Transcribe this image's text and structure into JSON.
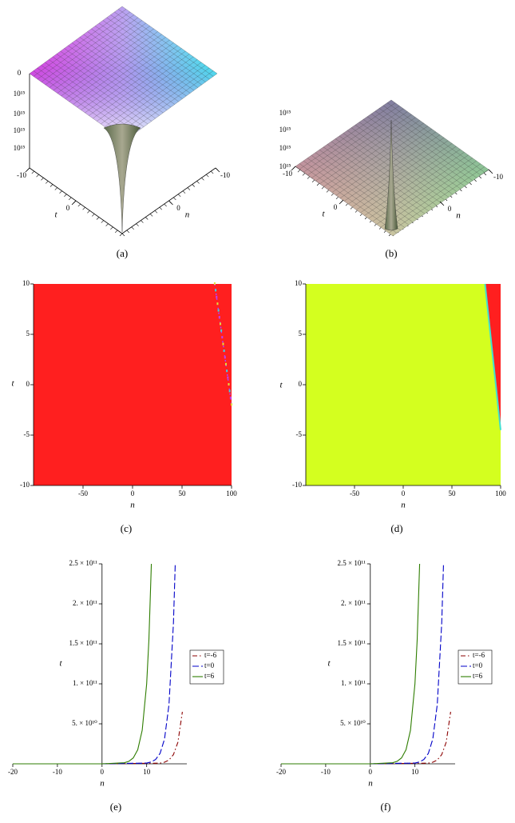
{
  "chart_data": [
    {
      "type": "surface",
      "caption": "(a)",
      "xlabel": "t",
      "ylabel": "n",
      "xticks": [
        -10,
        0
      ],
      "yticks": [
        0,
        -10
      ],
      "ztick_labels": [
        "0",
        "10¹⁵",
        "10¹⁵",
        "10¹⁵",
        "10¹⁵"
      ]
    },
    {
      "type": "surface",
      "caption": "(b)",
      "xlabel": "t",
      "ylabel": "n",
      "xticks": [
        -10,
        0
      ],
      "yticks": [
        0,
        -10
      ],
      "ztick_labels": [
        "10¹⁵",
        "10¹⁵",
        "10¹⁵",
        "10¹⁵"
      ]
    },
    {
      "type": "density",
      "caption": "(c)",
      "xlabel": "n",
      "ylabel": "t",
      "xlim": [
        -100,
        100
      ],
      "ylim": [
        -10,
        10
      ],
      "xticks": [
        -50,
        0,
        50,
        100
      ],
      "yticks": [
        -10,
        -5,
        0,
        5,
        10
      ],
      "colors": [
        "#ff1f1f"
      ],
      "boundary": {
        "n": [
          83,
          100
        ],
        "t": [
          10,
          -2
        ]
      }
    },
    {
      "type": "density",
      "caption": "(d)",
      "xlabel": "n",
      "ylabel": "t",
      "xlim": [
        -100,
        100
      ],
      "ylim": [
        -10,
        10
      ],
      "xticks": [
        -50,
        0,
        50,
        100
      ],
      "yticks": [
        -10,
        -5,
        0,
        5,
        10
      ],
      "colors": [
        "#d4ff1f",
        "#ff1f1f"
      ],
      "boundary": {
        "n": [
          84,
          100
        ],
        "t": [
          10,
          -4.5
        ]
      }
    },
    {
      "type": "line",
      "caption": "(e)",
      "xlabel": "n",
      "ylabel": "t",
      "xlim": [
        -20,
        19
      ],
      "ylim": [
        0,
        250000000000
      ],
      "xticks": [
        -20,
        -10,
        0,
        10
      ],
      "yticks": [
        {
          "value": 50000000000,
          "label": "5. × 10¹⁰"
        },
        {
          "value": 100000000000,
          "label": "1. × 10¹¹"
        },
        {
          "value": 150000000000,
          "label": "1.5 × 10¹¹"
        },
        {
          "value": 200000000000,
          "label": "2. × 10¹¹"
        },
        {
          "value": 250000000000,
          "label": "2.5 × 10¹¹"
        }
      ],
      "series": [
        {
          "name": "t=-6",
          "color": "#8b0000",
          "style": "dash-dot",
          "x": [
            -20,
            0,
            13,
            14,
            15,
            16,
            17,
            18
          ],
          "values": [
            0,
            0,
            840000000,
            2000000000,
            4800000000,
            11500000000,
            27000000000,
            65000000000
          ]
        },
        {
          "name": "t=0",
          "color": "#0000c8",
          "style": "dash",
          "x": [
            -20,
            0,
            10,
            11,
            12,
            13,
            14,
            15,
            16,
            16.4
          ],
          "values": [
            0,
            0,
            950000000,
            2300000000,
            5400000000,
            13000000000,
            31000000000,
            74000000000,
            176000000000,
            250000000000
          ]
        },
        {
          "name": "t=6",
          "color": "#2e7d00",
          "style": "solid",
          "x": [
            -20,
            0,
            5,
            6,
            7,
            8,
            9,
            10,
            10.5,
            11.05
          ],
          "values": [
            0,
            0,
            1300000000,
            3100000000,
            7400000000,
            17600000000,
            42000000000,
            100000000000,
            155000000000,
            250000000000
          ]
        }
      ]
    },
    {
      "type": "line",
      "caption": "(f)",
      "xlabel": "n",
      "ylabel": "t",
      "xlim": [
        -20,
        19
      ],
      "ylim": [
        0,
        250000000000
      ],
      "xticks": [
        -20,
        -10,
        0,
        10
      ],
      "yticks": [
        {
          "value": 50000000000,
          "label": "5. × 10¹⁰"
        },
        {
          "value": 100000000000,
          "label": "1. × 10¹¹"
        },
        {
          "value": 150000000000,
          "label": "1.5 × 10¹¹"
        },
        {
          "value": 200000000000,
          "label": "2. × 10¹¹"
        },
        {
          "value": 250000000000,
          "label": "2.5 × 10¹¹"
        }
      ],
      "series": [
        {
          "name": "t=-6",
          "color": "#8b0000",
          "style": "dash-dot",
          "x": [
            -20,
            0,
            13,
            14,
            15,
            16,
            17,
            18
          ],
          "values": [
            0,
            0,
            840000000,
            2000000000,
            4800000000,
            11500000000,
            27000000000,
            65000000000
          ]
        },
        {
          "name": "t=0",
          "color": "#0000c8",
          "style": "dash",
          "x": [
            -20,
            0,
            10,
            11,
            12,
            13,
            14,
            15,
            16,
            16.4
          ],
          "values": [
            0,
            0,
            950000000,
            2300000000,
            5400000000,
            13000000000,
            31000000000,
            74000000000,
            176000000000,
            250000000000
          ]
        },
        {
          "name": "t=6",
          "color": "#2e7d00",
          "style": "solid",
          "x": [
            -20,
            0,
            5,
            6,
            7,
            8,
            9,
            10,
            10.5,
            11.05
          ],
          "values": [
            0,
            0,
            1300000000,
            3100000000,
            7400000000,
            17600000000,
            42000000000,
            100000000000,
            155000000000,
            250000000000
          ]
        }
      ]
    }
  ]
}
